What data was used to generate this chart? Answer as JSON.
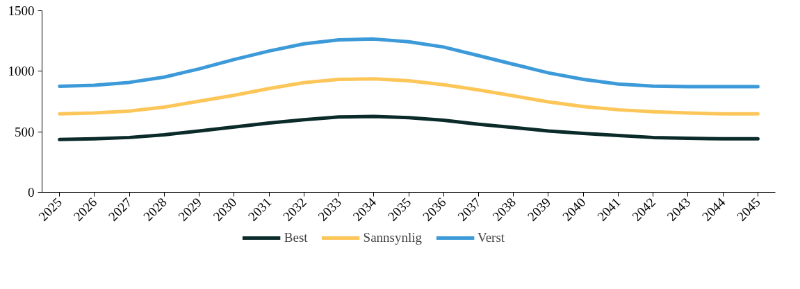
{
  "chart_data": {
    "type": "line",
    "categories": [
      "2025",
      "2026",
      "2027",
      "2028",
      "2029",
      "2030",
      "2031",
      "2032",
      "2033",
      "2034",
      "2035",
      "2036",
      "2037",
      "2038",
      "2039",
      "2040",
      "2041",
      "2042",
      "2043",
      "2044",
      "2045"
    ],
    "series": [
      {
        "name": "Best",
        "color": "#0b2a2a",
        "values": [
          436,
          442,
          453,
          475,
          507,
          540,
          573,
          600,
          622,
          627,
          617,
          595,
          562,
          535,
          507,
          486,
          469,
          453,
          447,
          442,
          442
        ]
      },
      {
        "name": "Sannsynlig",
        "color": "#fcc659",
        "values": [
          649,
          655,
          671,
          704,
          753,
          802,
          857,
          906,
          933,
          938,
          922,
          889,
          846,
          797,
          747,
          709,
          682,
          666,
          655,
          649,
          649
        ]
      },
      {
        "name": "Verst",
        "color": "#3d9ad9",
        "values": [
          876,
          884,
          908,
          952,
          1020,
          1097,
          1167,
          1227,
          1260,
          1266,
          1244,
          1200,
          1129,
          1058,
          987,
          933,
          895,
          878,
          873,
          873,
          873
        ]
      }
    ],
    "ylim": [
      0,
      1500
    ],
    "yticks": [
      0,
      500,
      1000,
      1500
    ],
    "grid": false,
    "legend": "bottom",
    "marker": "none",
    "line_style": "solid"
  }
}
